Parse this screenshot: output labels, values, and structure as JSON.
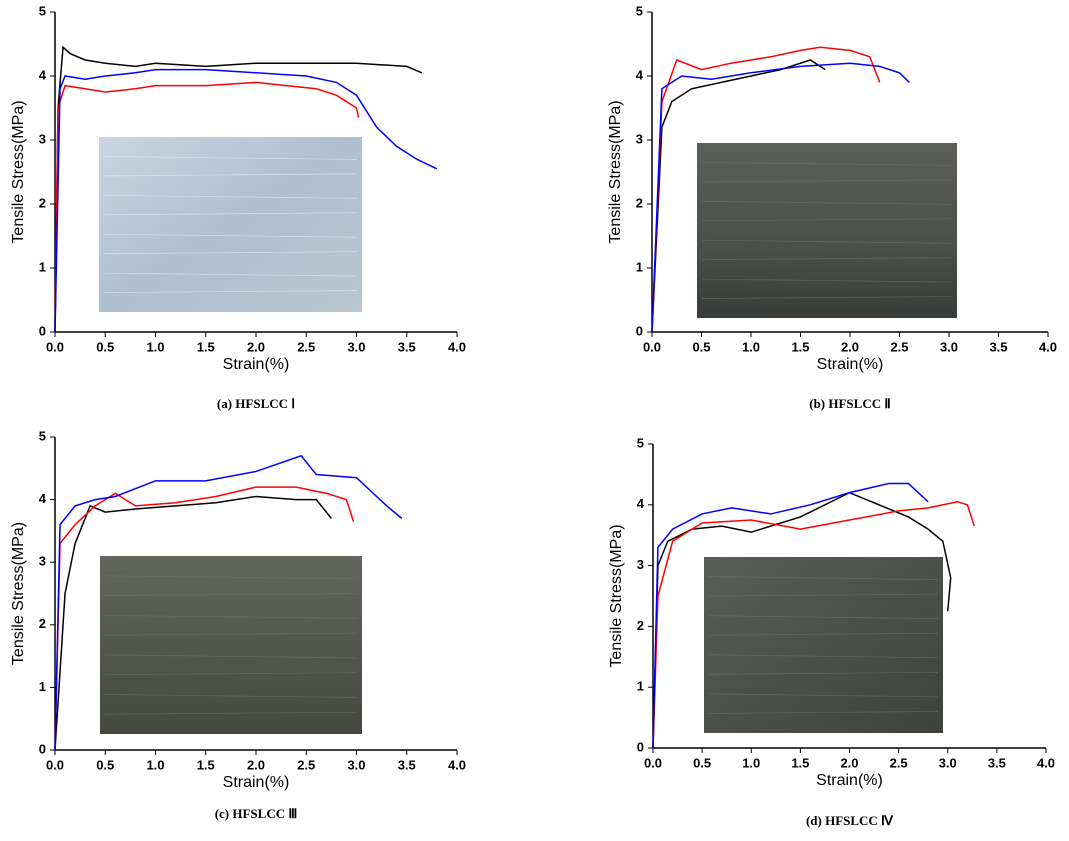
{
  "chart_data": [
    {
      "type": "line",
      "caption": "(a)  HFSLCC Ⅰ",
      "xlabel": "Strain(%)",
      "ylabel": "Tensile Stress(MPa)",
      "xlim": [
        0,
        4
      ],
      "ylim": [
        0,
        5
      ],
      "xticks": [
        {
          "value": 0,
          "label": "0.0"
        },
        0.5,
        {
          "value": 1,
          "label": "1.0"
        },
        1.5,
        {
          "value": 2,
          "label": "2.0"
        },
        2.5,
        {
          "value": 3,
          "label": "3.0"
        },
        3.5,
        {
          "value": 4,
          "label": "4.0"
        }
      ],
      "yticks": [
        0,
        1,
        2,
        3,
        4,
        5
      ],
      "series": [
        {
          "color": "#000000",
          "x": [
            0,
            0.03,
            0.08,
            0.15,
            0.3,
            0.5,
            0.8,
            1.0,
            1.5,
            2.0,
            2.5,
            3.0,
            3.5,
            3.65
          ],
          "values": [
            0,
            3.5,
            4.45,
            4.35,
            4.25,
            4.2,
            4.15,
            4.2,
            4.15,
            4.2,
            4.2,
            4.2,
            4.15,
            4.05
          ]
        },
        {
          "color": "#ff0000",
          "x": [
            0,
            0.03,
            0.1,
            0.3,
            0.5,
            0.8,
            1.0,
            1.5,
            2.0,
            2.3,
            2.6,
            2.8,
            3.0,
            3.02
          ],
          "values": [
            0,
            3.5,
            3.85,
            3.8,
            3.75,
            3.8,
            3.85,
            3.85,
            3.9,
            3.85,
            3.8,
            3.7,
            3.5,
            3.35
          ]
        },
        {
          "color": "#0000ff",
          "x": [
            0,
            0.05,
            0.1,
            0.3,
            0.5,
            0.8,
            1.0,
            1.5,
            2.0,
            2.5,
            2.8,
            3.0,
            3.2,
            3.4,
            3.6,
            3.8
          ],
          "values": [
            0,
            3.8,
            4.0,
            3.95,
            4.0,
            4.05,
            4.1,
            4.1,
            4.05,
            4.0,
            3.9,
            3.7,
            3.2,
            2.9,
            2.7,
            2.55
          ]
        }
      ]
    },
    {
      "type": "line",
      "caption": "(b)  HFSLCC Ⅱ",
      "xlabel": "Strain(%)",
      "ylabel": "Tensile Stress(MPa)",
      "xlim": [
        0,
        4
      ],
      "ylim": [
        0,
        5
      ],
      "xticks": [
        {
          "value": 0,
          "label": "0.0"
        },
        0.5,
        {
          "value": 1,
          "label": "1.0"
        },
        1.5,
        {
          "value": 2,
          "label": "2.0"
        },
        2.5,
        {
          "value": 3,
          "label": "3.0"
        },
        3.5,
        {
          "value": 4,
          "label": "4.0"
        }
      ],
      "yticks": [
        0,
        1,
        2,
        3,
        4,
        5
      ],
      "series": [
        {
          "color": "#000000",
          "x": [
            0,
            0.1,
            0.2,
            0.4,
            0.7,
            1.0,
            1.3,
            1.6,
            1.75
          ],
          "values": [
            0,
            3.2,
            3.6,
            3.8,
            3.9,
            4.0,
            4.1,
            4.25,
            4.1
          ]
        },
        {
          "color": "#ff0000",
          "x": [
            0,
            0.1,
            0.25,
            0.5,
            0.8,
            1.2,
            1.5,
            1.7,
            2.0,
            2.2,
            2.3
          ],
          "values": [
            0,
            3.6,
            4.25,
            4.1,
            4.2,
            4.3,
            4.4,
            4.45,
            4.4,
            4.3,
            3.9
          ]
        },
        {
          "color": "#0000ff",
          "x": [
            0,
            0.1,
            0.3,
            0.6,
            1.0,
            1.5,
            2.0,
            2.3,
            2.5,
            2.6
          ],
          "values": [
            0,
            3.8,
            4.0,
            3.95,
            4.05,
            4.15,
            4.2,
            4.15,
            4.05,
            3.9
          ]
        }
      ]
    },
    {
      "type": "line",
      "caption": "(c)  HFSLCC Ⅲ",
      "xlabel": "Strain(%)",
      "ylabel": "Tensile Stress(MPa)",
      "xlim": [
        0,
        4
      ],
      "ylim": [
        0,
        5
      ],
      "xticks": [
        {
          "value": 0,
          "label": "0.0"
        },
        0.5,
        {
          "value": 1,
          "label": "1.0"
        },
        1.5,
        {
          "value": 2,
          "label": "2.0"
        },
        2.5,
        {
          "value": 3,
          "label": "3.0"
        },
        3.5,
        {
          "value": 4,
          "label": "4.0"
        }
      ],
      "yticks": [
        0,
        1,
        2,
        3,
        4,
        5
      ],
      "series": [
        {
          "color": "#000000",
          "x": [
            0,
            0.1,
            0.2,
            0.35,
            0.5,
            0.8,
            1.2,
            1.6,
            2.0,
            2.4,
            2.6,
            2.75
          ],
          "values": [
            0,
            2.5,
            3.3,
            3.9,
            3.8,
            3.85,
            3.9,
            3.95,
            4.05,
            4.0,
            4.0,
            3.7
          ]
        },
        {
          "color": "#ff0000",
          "x": [
            0,
            0.05,
            0.2,
            0.4,
            0.6,
            0.8,
            1.2,
            1.6,
            2.0,
            2.4,
            2.7,
            2.9,
            2.97
          ],
          "values": [
            0,
            3.3,
            3.6,
            3.9,
            4.1,
            3.9,
            3.95,
            4.05,
            4.2,
            4.2,
            4.1,
            4.0,
            3.65
          ]
        },
        {
          "color": "#0000ff",
          "x": [
            0,
            0.05,
            0.2,
            0.4,
            0.6,
            1.0,
            1.5,
            2.0,
            2.45,
            2.6,
            3.0,
            3.3,
            3.45
          ],
          "values": [
            0,
            3.6,
            3.9,
            4.0,
            4.05,
            4.3,
            4.3,
            4.45,
            4.7,
            4.4,
            4.35,
            3.9,
            3.7
          ]
        }
      ]
    },
    {
      "type": "line",
      "caption": "(d)  HFSLCC Ⅳ",
      "xlabel": "Strain(%)",
      "ylabel": "Tensile Stress(MPa)",
      "xlim": [
        0,
        4
      ],
      "ylim": [
        0,
        5
      ],
      "xticks": [
        {
          "value": 0,
          "label": "0.0"
        },
        0.5,
        {
          "value": 1,
          "label": "1.0"
        },
        1.5,
        {
          "value": 2,
          "label": "2.0"
        },
        2.5,
        {
          "value": 3,
          "label": "3.0"
        },
        3.5,
        {
          "value": 4,
          "label": "4.0"
        }
      ],
      "yticks": [
        0,
        1,
        2,
        3,
        4,
        5
      ],
      "series": [
        {
          "color": "#000000",
          "x": [
            0,
            0.05,
            0.15,
            0.4,
            0.7,
            1.0,
            1.5,
            2.0,
            2.3,
            2.6,
            2.8,
            2.95,
            3.03,
            3.0
          ],
          "values": [
            0,
            3.0,
            3.4,
            3.6,
            3.65,
            3.55,
            3.8,
            4.2,
            4.0,
            3.8,
            3.6,
            3.4,
            2.8,
            2.25
          ]
        },
        {
          "color": "#ff0000",
          "x": [
            0,
            0.05,
            0.2,
            0.5,
            1.0,
            1.5,
            2.0,
            2.5,
            2.8,
            3.1,
            3.2,
            3.27
          ],
          "values": [
            0,
            2.5,
            3.4,
            3.7,
            3.75,
            3.6,
            3.75,
            3.9,
            3.95,
            4.05,
            4.0,
            3.65
          ]
        },
        {
          "color": "#0000ff",
          "x": [
            0,
            0.05,
            0.2,
            0.5,
            0.8,
            1.2,
            1.6,
            2.0,
            2.4,
            2.6,
            2.8
          ],
          "values": [
            0,
            3.3,
            3.6,
            3.85,
            3.95,
            3.85,
            4.0,
            4.2,
            4.35,
            4.35,
            4.05
          ]
        }
      ]
    }
  ]
}
